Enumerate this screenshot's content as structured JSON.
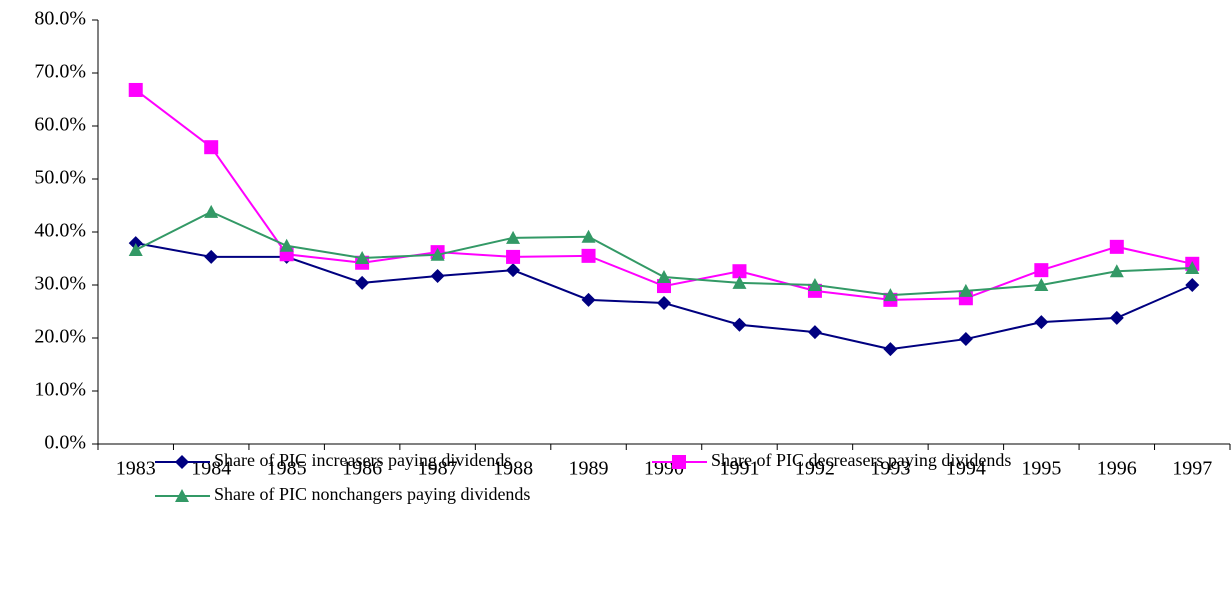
{
  "chart_data": {
    "type": "line",
    "categories": [
      "1983",
      "1984",
      "1985",
      "1986",
      "1987",
      "1988",
      "1989",
      "1990",
      "1991",
      "1992",
      "1993",
      "1994",
      "1995",
      "1996",
      "1997"
    ],
    "series": [
      {
        "name": "Share of PIC increasers paying dividends",
        "color": "#000080",
        "marker": "diamond",
        "values": [
          37.9,
          35.3,
          35.3,
          30.4,
          31.7,
          32.8,
          27.2,
          26.6,
          22.5,
          21.1,
          17.9,
          19.8,
          23.0,
          23.8,
          30.0
        ]
      },
      {
        "name": "Share of PIC decreasers paying dividends",
        "color": "#ff00ff",
        "marker": "square",
        "values": [
          66.8,
          56.0,
          35.8,
          34.2,
          36.2,
          35.3,
          35.5,
          29.8,
          32.6,
          28.9,
          27.2,
          27.5,
          32.8,
          37.2,
          34.0
        ]
      },
      {
        "name": "Share of PIC nonchangers paying dividends",
        "color": "#339966",
        "marker": "triangle",
        "values": [
          36.6,
          43.8,
          37.4,
          35.1,
          35.7,
          38.9,
          39.1,
          31.5,
          30.4,
          30.0,
          28.1,
          28.9,
          30.0,
          32.6,
          33.2
        ]
      }
    ],
    "ylim": [
      0,
      80
    ],
    "yticks": [
      {
        "value": 0,
        "label": "0.0%"
      },
      {
        "value": 10,
        "label": "10.0%"
      },
      {
        "value": 20,
        "label": "20.0%"
      },
      {
        "value": 30,
        "label": "30.0%"
      },
      {
        "value": 40,
        "label": "40.0%"
      },
      {
        "value": 50,
        "label": "50.0%"
      },
      {
        "value": 60,
        "label": "60.0%"
      },
      {
        "value": 70,
        "label": "70.0%"
      },
      {
        "value": 80,
        "label": "80.0%"
      }
    ],
    "grid": false,
    "legend": "bottom"
  }
}
